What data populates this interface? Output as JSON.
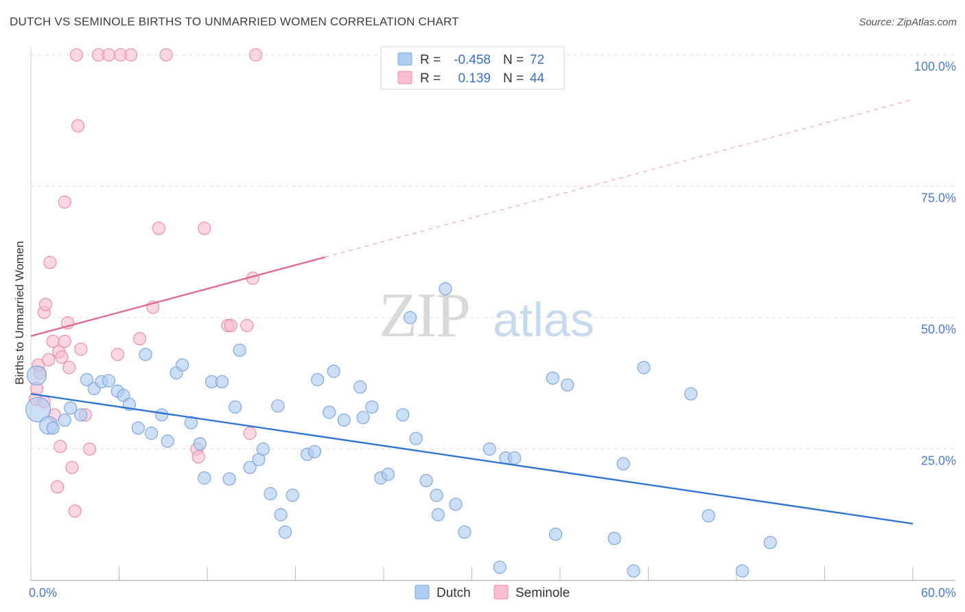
{
  "title": "DUTCH VS SEMINOLE BIRTHS TO UNMARRIED WOMEN CORRELATION CHART",
  "source": "Source: ZipAtlas.com",
  "watermark": {
    "zip": "ZIP",
    "atlas": "atlas"
  },
  "colors": {
    "dutch_fill": "#aecbf0",
    "dutch_stroke": "#7fa7dc",
    "dutch_line": "#2e74d6",
    "seminole_fill": "#f7bfd0",
    "seminole_stroke": "#e98daa",
    "seminole_line": "#e06a93"
  },
  "legend_stats": [
    {
      "r_label": "R =",
      "r_value": "-0.458",
      "n_label": "N =",
      "n_value": "72"
    },
    {
      "r_label": "R =",
      "r_value": "0.139",
      "n_label": "N =",
      "n_value": "44"
    }
  ],
  "chart_data": {
    "type": "scatter",
    "title": "DUTCH VS SEMINOLE BIRTHS TO UNMARRIED WOMEN CORRELATION CHART",
    "xlabel": "",
    "ylabel": "Births to Unmarried Women",
    "xlim": [
      0,
      60
    ],
    "ylim": [
      0,
      102
    ],
    "x_tick_labels": [
      {
        "value": 0,
        "label": "0.0%"
      },
      {
        "value": 60,
        "label": "60.0%"
      }
    ],
    "y_tick_labels": [
      {
        "value": 25,
        "label": "25.0%"
      },
      {
        "value": 50,
        "label": "50.0%"
      },
      {
        "value": 75,
        "label": "75.0%"
      },
      {
        "value": 100,
        "label": "100.0%"
      }
    ],
    "grid": true,
    "legend_position": "bottom",
    "series": [
      {
        "name": "Dutch",
        "r": -0.458,
        "n": 72,
        "trend": {
          "x": [
            0,
            60
          ],
          "y": [
            35.5,
            10.8
          ],
          "style": "solid"
        },
        "points": [
          {
            "x": 0.4,
            "y": 39.0,
            "s": 14
          },
          {
            "x": 0.5,
            "y": 32.5,
            "s": 18
          },
          {
            "x": 1.2,
            "y": 29.5,
            "s": 13
          },
          {
            "x": 1.5,
            "y": 29.0,
            "s": 9
          },
          {
            "x": 2.3,
            "y": 30.5,
            "s": 9
          },
          {
            "x": 2.7,
            "y": 32.8,
            "s": 9
          },
          {
            "x": 3.4,
            "y": 31.5,
            "s": 9
          },
          {
            "x": 3.8,
            "y": 38.2,
            "s": 9
          },
          {
            "x": 4.3,
            "y": 36.5,
            "s": 9
          },
          {
            "x": 4.8,
            "y": 37.8,
            "s": 9
          },
          {
            "x": 5.3,
            "y": 38.0,
            "s": 9
          },
          {
            "x": 5.9,
            "y": 36.0,
            "s": 9
          },
          {
            "x": 6.3,
            "y": 35.2,
            "s": 9
          },
          {
            "x": 6.7,
            "y": 33.5,
            "s": 9
          },
          {
            "x": 7.3,
            "y": 29.0,
            "s": 9
          },
          {
            "x": 7.8,
            "y": 43.0,
            "s": 9
          },
          {
            "x": 8.2,
            "y": 28.0,
            "s": 9
          },
          {
            "x": 8.9,
            "y": 31.5,
            "s": 9
          },
          {
            "x": 9.3,
            "y": 26.5,
            "s": 9
          },
          {
            "x": 9.9,
            "y": 39.5,
            "s": 9
          },
          {
            "x": 10.3,
            "y": 41.0,
            "s": 9
          },
          {
            "x": 10.9,
            "y": 30.0,
            "s": 9
          },
          {
            "x": 11.5,
            "y": 26.0,
            "s": 9
          },
          {
            "x": 11.8,
            "y": 19.5,
            "s": 9
          },
          {
            "x": 12.3,
            "y": 37.8,
            "s": 9
          },
          {
            "x": 13.0,
            "y": 37.8,
            "s": 9
          },
          {
            "x": 13.5,
            "y": 19.3,
            "s": 9
          },
          {
            "x": 13.9,
            "y": 33.0,
            "s": 9
          },
          {
            "x": 14.2,
            "y": 43.8,
            "s": 9
          },
          {
            "x": 14.9,
            "y": 21.5,
            "s": 9
          },
          {
            "x": 15.5,
            "y": 23.0,
            "s": 9
          },
          {
            "x": 15.8,
            "y": 25.0,
            "s": 9
          },
          {
            "x": 16.3,
            "y": 16.5,
            "s": 9
          },
          {
            "x": 16.8,
            "y": 33.2,
            "s": 9
          },
          {
            "x": 17.0,
            "y": 12.5,
            "s": 9
          },
          {
            "x": 17.3,
            "y": 9.2,
            "s": 9
          },
          {
            "x": 17.8,
            "y": 16.2,
            "s": 9
          },
          {
            "x": 18.8,
            "y": 24.0,
            "s": 9
          },
          {
            "x": 19.3,
            "y": 24.5,
            "s": 9
          },
          {
            "x": 19.5,
            "y": 38.2,
            "s": 9
          },
          {
            "x": 20.3,
            "y": 32.0,
            "s": 9
          },
          {
            "x": 20.6,
            "y": 39.8,
            "s": 9
          },
          {
            "x": 21.3,
            "y": 30.5,
            "s": 9
          },
          {
            "x": 22.4,
            "y": 36.8,
            "s": 9
          },
          {
            "x": 22.6,
            "y": 31.0,
            "s": 9
          },
          {
            "x": 23.2,
            "y": 33.0,
            "s": 9
          },
          {
            "x": 23.8,
            "y": 19.5,
            "s": 9
          },
          {
            "x": 24.3,
            "y": 20.2,
            "s": 9
          },
          {
            "x": 25.3,
            "y": 31.5,
            "s": 9
          },
          {
            "x": 25.8,
            "y": 50.0,
            "s": 9
          },
          {
            "x": 26.2,
            "y": 27.0,
            "s": 9
          },
          {
            "x": 26.9,
            "y": 19.0,
            "s": 9
          },
          {
            "x": 27.6,
            "y": 16.2,
            "s": 9
          },
          {
            "x": 27.7,
            "y": 12.5,
            "s": 9
          },
          {
            "x": 28.2,
            "y": 55.5,
            "s": 9
          },
          {
            "x": 28.9,
            "y": 14.5,
            "s": 9
          },
          {
            "x": 29.5,
            "y": 9.2,
            "s": 9
          },
          {
            "x": 31.2,
            "y": 25.0,
            "s": 9
          },
          {
            "x": 31.9,
            "y": 2.5,
            "s": 9
          },
          {
            "x": 32.3,
            "y": 23.3,
            "s": 9
          },
          {
            "x": 32.9,
            "y": 23.3,
            "s": 9
          },
          {
            "x": 35.5,
            "y": 38.5,
            "s": 9
          },
          {
            "x": 35.7,
            "y": 8.8,
            "s": 9
          },
          {
            "x": 36.5,
            "y": 37.2,
            "s": 9
          },
          {
            "x": 39.7,
            "y": 8.0,
            "s": 9
          },
          {
            "x": 40.3,
            "y": 22.2,
            "s": 9
          },
          {
            "x": 41.0,
            "y": 1.8,
            "s": 9
          },
          {
            "x": 41.7,
            "y": 40.5,
            "s": 9
          },
          {
            "x": 44.9,
            "y": 35.5,
            "s": 9
          },
          {
            "x": 46.1,
            "y": 12.3,
            "s": 9
          },
          {
            "x": 48.4,
            "y": 1.8,
            "s": 9
          },
          {
            "x": 50.3,
            "y": 7.2,
            "s": 9
          }
        ]
      },
      {
        "name": "Seminole",
        "r": 0.139,
        "n": 44,
        "trend": {
          "x": [
            0,
            20
          ],
          "y": [
            46.5,
            61.5
          ],
          "style": "solid",
          "extended": {
            "x": [
              20,
              60
            ],
            "y": [
              61.5,
              91.5
            ],
            "style": "dashed"
          }
        },
        "points": [
          {
            "x": 0.3,
            "y": 34.5,
            "s": 9
          },
          {
            "x": 0.4,
            "y": 36.5,
            "s": 9
          },
          {
            "x": 0.5,
            "y": 41.0,
            "s": 9
          },
          {
            "x": 0.6,
            "y": 39.5,
            "s": 9
          },
          {
            "x": 0.9,
            "y": 34.0,
            "s": 9
          },
          {
            "x": 0.9,
            "y": 51.0,
            "s": 9
          },
          {
            "x": 1.0,
            "y": 52.5,
            "s": 9
          },
          {
            "x": 1.2,
            "y": 42.0,
            "s": 9
          },
          {
            "x": 1.3,
            "y": 60.5,
            "s": 9
          },
          {
            "x": 1.5,
            "y": 45.5,
            "s": 9
          },
          {
            "x": 1.6,
            "y": 31.5,
            "s": 9
          },
          {
            "x": 1.8,
            "y": 17.8,
            "s": 9
          },
          {
            "x": 1.9,
            "y": 43.5,
            "s": 9
          },
          {
            "x": 2.0,
            "y": 25.5,
            "s": 9
          },
          {
            "x": 2.1,
            "y": 42.5,
            "s": 9
          },
          {
            "x": 2.3,
            "y": 72.0,
            "s": 9
          },
          {
            "x": 2.3,
            "y": 45.5,
            "s": 9
          },
          {
            "x": 2.5,
            "y": 49.0,
            "s": 9
          },
          {
            "x": 2.6,
            "y": 40.5,
            "s": 9
          },
          {
            "x": 2.8,
            "y": 21.5,
            "s": 9
          },
          {
            "x": 3.0,
            "y": 13.2,
            "s": 9
          },
          {
            "x": 3.1,
            "y": 100.0,
            "s": 9
          },
          {
            "x": 3.2,
            "y": 86.5,
            "s": 9
          },
          {
            "x": 3.4,
            "y": 44.0,
            "s": 9
          },
          {
            "x": 3.7,
            "y": 31.5,
            "s": 9
          },
          {
            "x": 4.0,
            "y": 25.0,
            "s": 9
          },
          {
            "x": 4.6,
            "y": 100.0,
            "s": 9
          },
          {
            "x": 5.3,
            "y": 100.0,
            "s": 9
          },
          {
            "x": 5.9,
            "y": 43.0,
            "s": 9
          },
          {
            "x": 6.1,
            "y": 100.0,
            "s": 9
          },
          {
            "x": 6.8,
            "y": 100.0,
            "s": 9
          },
          {
            "x": 7.4,
            "y": 46.0,
            "s": 9
          },
          {
            "x": 8.3,
            "y": 52.0,
            "s": 9
          },
          {
            "x": 8.7,
            "y": 67.0,
            "s": 9
          },
          {
            "x": 9.2,
            "y": 100.0,
            "s": 9
          },
          {
            "x": 11.3,
            "y": 25.0,
            "s": 9
          },
          {
            "x": 11.4,
            "y": 23.5,
            "s": 9
          },
          {
            "x": 11.8,
            "y": 67.0,
            "s": 9
          },
          {
            "x": 13.4,
            "y": 48.5,
            "s": 9
          },
          {
            "x": 13.6,
            "y": 48.5,
            "s": 9
          },
          {
            "x": 14.7,
            "y": 48.5,
            "s": 9
          },
          {
            "x": 14.9,
            "y": 28.0,
            "s": 9
          },
          {
            "x": 15.1,
            "y": 57.5,
            "s": 9
          },
          {
            "x": 15.3,
            "y": 100.0,
            "s": 9
          }
        ]
      }
    ]
  }
}
